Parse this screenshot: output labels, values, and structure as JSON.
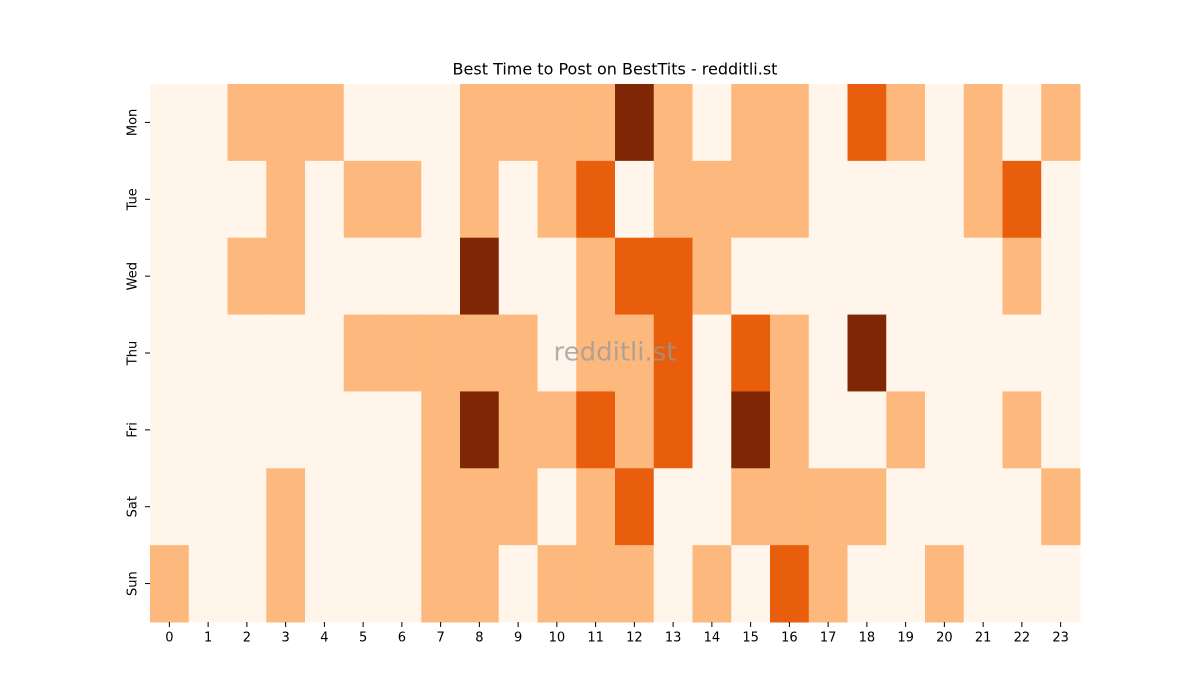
{
  "chart_data": {
    "type": "heatmap",
    "title": "Best Time to Post on BestTits - redditli.st",
    "annotation": "redditli.st",
    "x": [
      0,
      1,
      2,
      3,
      4,
      5,
      6,
      7,
      8,
      9,
      10,
      11,
      12,
      13,
      14,
      15,
      16,
      17,
      18,
      19,
      20,
      21,
      22,
      23
    ],
    "y": [
      "Mon",
      "Tue",
      "Wed",
      "Thu",
      "Fri",
      "Sat",
      "Sun"
    ],
    "values": [
      [
        0,
        0,
        1,
        1,
        1,
        0,
        0,
        0,
        1,
        1,
        1,
        1,
        3,
        1,
        0,
        1,
        1,
        0,
        2,
        1,
        0,
        1,
        0,
        1
      ],
      [
        0,
        0,
        0,
        1,
        0,
        1,
        1,
        0,
        1,
        0,
        1,
        2,
        0,
        1,
        1,
        1,
        1,
        0,
        0,
        0,
        0,
        1,
        2,
        0
      ],
      [
        0,
        0,
        1,
        1,
        0,
        0,
        0,
        0,
        3,
        0,
        0,
        1,
        2,
        2,
        1,
        0,
        0,
        0,
        0,
        0,
        0,
        0,
        1,
        0
      ],
      [
        0,
        0,
        0,
        0,
        0,
        1,
        1,
        1,
        1,
        1,
        0,
        1,
        1,
        2,
        0,
        2,
        1,
        0,
        3,
        0,
        0,
        0,
        0,
        0
      ],
      [
        0,
        0,
        0,
        0,
        0,
        0,
        0,
        1,
        3,
        1,
        1,
        2,
        1,
        2,
        0,
        3,
        1,
        0,
        0,
        1,
        0,
        0,
        1,
        0
      ],
      [
        0,
        0,
        0,
        1,
        0,
        0,
        0,
        1,
        1,
        1,
        0,
        1,
        2,
        0,
        0,
        1,
        1,
        1,
        1,
        0,
        0,
        0,
        0,
        1
      ],
      [
        1,
        0,
        0,
        1,
        0,
        0,
        0,
        1,
        1,
        0,
        1,
        1,
        1,
        0,
        1,
        0,
        2,
        1,
        0,
        0,
        1,
        0,
        0,
        0
      ]
    ],
    "zlim": [
      0,
      3
    ],
    "colors": [
      "#fff5eb",
      "#fdb97d",
      "#e95e0d",
      "#7f2704"
    ]
  }
}
